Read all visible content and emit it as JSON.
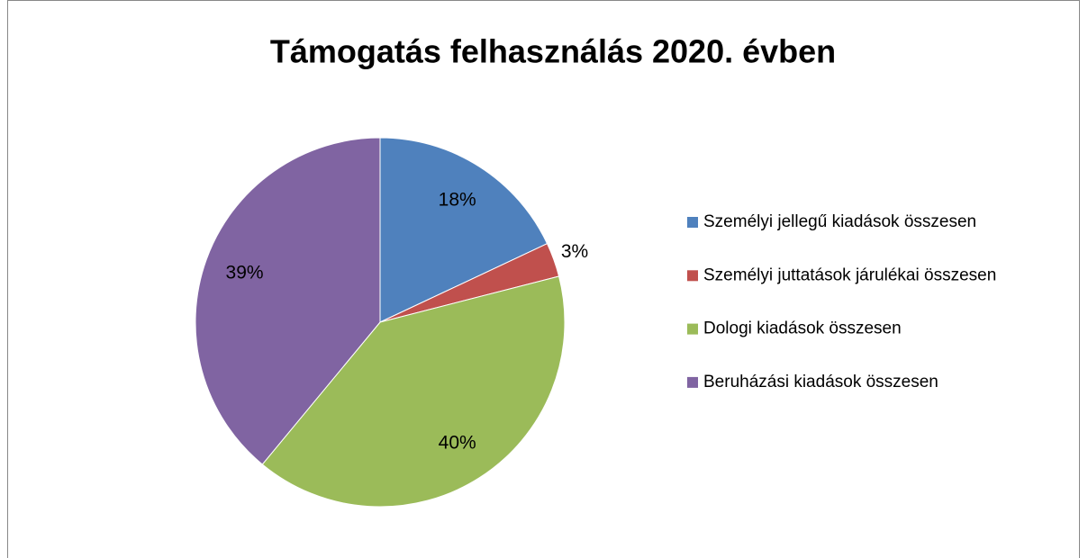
{
  "chart_data": {
    "type": "pie",
    "title": "Támogatás felhasználás 2020. évben",
    "categories": [
      "Személyi jellegű kiadások összesen",
      "Személyi juttatások járulékai összesen",
      "Dologi kiadások összesen",
      "Beruházási kiadások összesen"
    ],
    "values": [
      18,
      3,
      40,
      39
    ],
    "value_labels": [
      "18%",
      "3%",
      "40%",
      "39%"
    ],
    "colors": [
      "#4f81bd",
      "#c0504d",
      "#9bbb59",
      "#8064a2"
    ],
    "legend": "right"
  }
}
